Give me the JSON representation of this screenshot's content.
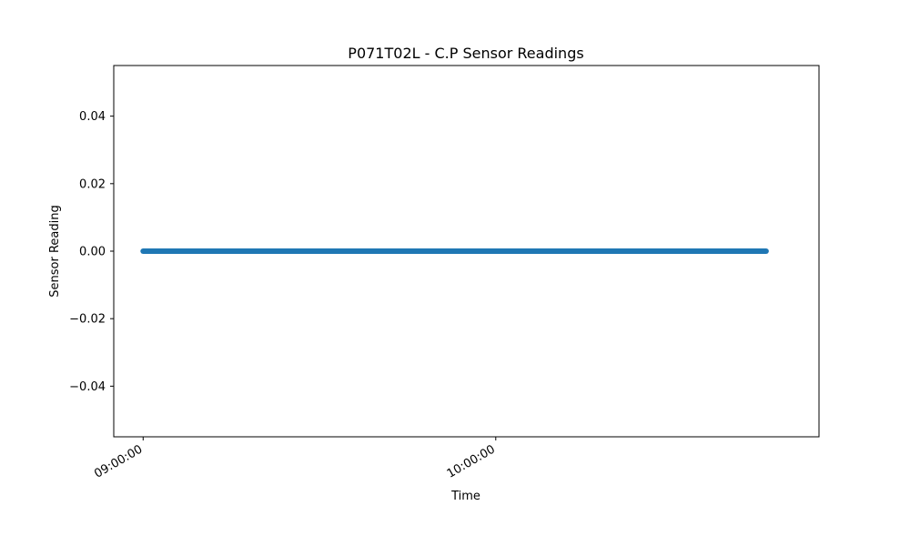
{
  "chart_data": {
    "type": "scatter",
    "title": "P071T02L - C.P Sensor Readings",
    "xlabel": "Time",
    "ylabel": "Sensor Reading",
    "x_tick_labels": [
      "09:00:00",
      "10:00:00"
    ],
    "y_tick_labels": [
      "−0.04",
      "−0.02",
      "0.00",
      "0.02",
      "0.04"
    ],
    "y_ticks": [
      -0.04,
      -0.02,
      0.0,
      0.02,
      0.04
    ],
    "ylim": [
      -0.055,
      0.055
    ],
    "xlim": [
      "08:55:00",
      "10:55:00"
    ],
    "x_start": "09:00:00",
    "x_end": "10:46:00",
    "y_value": 0.0,
    "grid": false,
    "series_color": "#1f77b4"
  }
}
